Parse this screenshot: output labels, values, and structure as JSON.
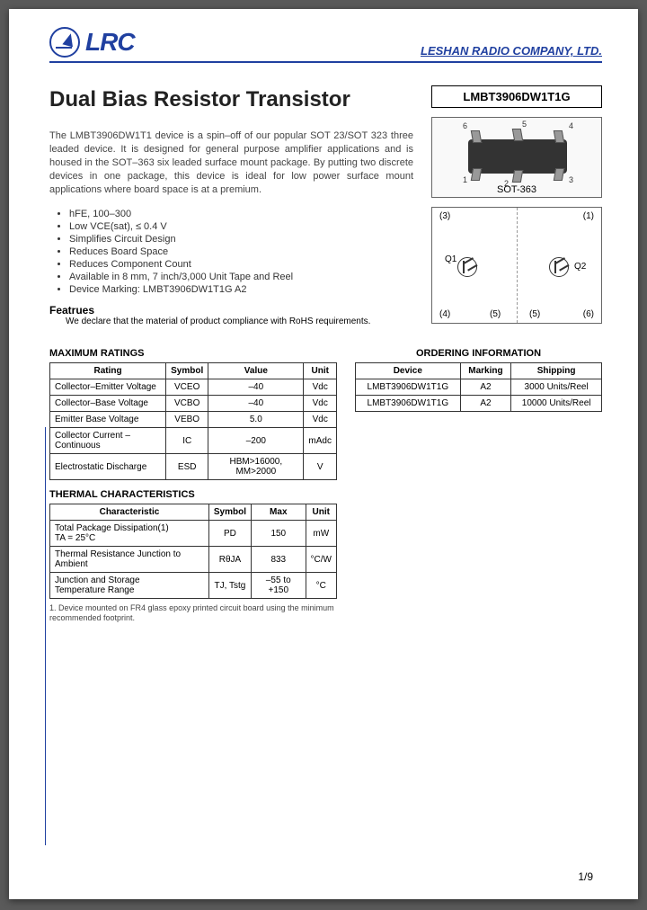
{
  "header": {
    "logo_text": "LRC",
    "company": "LESHAN RADIO COMPANY, LTD."
  },
  "title": "Dual Bias Resistor Transistor",
  "part_number": "LMBT3906DW1T1G",
  "package_label": "SOT-363",
  "pin_numbers": [
    "1",
    "2",
    "3",
    "4",
    "5",
    "6"
  ],
  "schematic": {
    "q1": "Q1",
    "q2": "Q2",
    "terminals_left": [
      "(3)",
      "(4)",
      "(5)"
    ],
    "terminals_right": [
      "(1)",
      "(6)",
      "(5)"
    ]
  },
  "intro": "The LMBT3906DW1T1 device is a spin–off of our popular SOT 23/SOT 323 three leaded device. It is designed for general purpose amplifier applications and is housed in the SOT–363 six leaded surface mount package. By putting two discrete devices in one package, this device is ideal for low power surface mount applications where board space is at a premium.",
  "bullets": [
    "hFE, 100–300",
    "Low VCE(sat), ≤ 0.4 V",
    "Simplifies Circuit Design",
    "Reduces Board Space",
    "Reduces Component Count",
    "Available in 8 mm, 7 inch/3,000 Unit Tape and Reel",
    "Device Marking: LMBT3906DW1T1G   A2"
  ],
  "features_heading": "Featrues",
  "features_text": "We declare that the material of product compliance with RoHS requirements.",
  "max_ratings": {
    "heading": "MAXIMUM RATINGS",
    "columns": [
      "Rating",
      "Symbol",
      "Value",
      "Unit"
    ],
    "rows": [
      [
        "Collector–Emitter Voltage",
        "VCEO",
        "–40",
        "Vdc"
      ],
      [
        "Collector–Base Voltage",
        "VCBO",
        "–40",
        "Vdc"
      ],
      [
        "Emitter  Base Voltage",
        "VEBO",
        "5.0",
        "Vdc"
      ],
      [
        "Collector Current – Continuous",
        "IC",
        "–200",
        "mAdc"
      ],
      [
        "Electrostatic Discharge",
        "ESD",
        "HBM>16000, MM>2000",
        "V"
      ]
    ]
  },
  "thermal": {
    "heading": "THERMAL CHARACTERISTICS",
    "columns": [
      "Characteristic",
      "Symbol",
      "Max",
      "Unit"
    ],
    "rows": [
      [
        "Total Package Dissipation(1)\n  TA = 25°C",
        "PD",
        "150",
        "mW"
      ],
      [
        "Thermal Resistance Junction to Ambient",
        "RθJA",
        "833",
        "°C/W"
      ],
      [
        "Junction and Storage\n   Temperature Range",
        "TJ, Tstg",
        "–55 to +150",
        "°C"
      ]
    ],
    "footnote": "1. Device mounted on FR4 glass epoxy printed circuit board using the minimum recommended footprint."
  },
  "ordering": {
    "heading": "ORDERING INFORMATION",
    "columns": [
      "Device",
      "Marking",
      "Shipping"
    ],
    "rows": [
      [
        "LMBT3906DW1T1G",
        "A2",
        "3000 Units/Reel"
      ],
      [
        "LMBT3906DW1T1G",
        "A2",
        "10000 Units/Reel"
      ]
    ]
  },
  "page": "1/9"
}
